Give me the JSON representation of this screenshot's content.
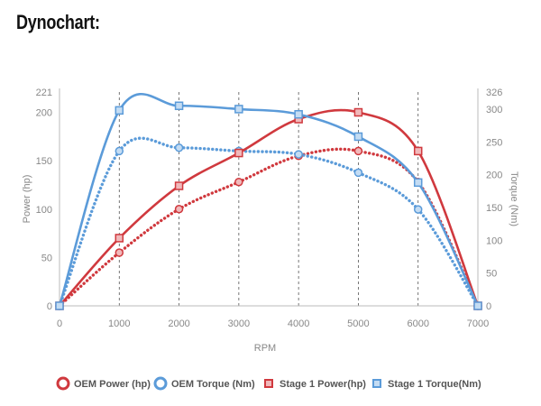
{
  "page": {
    "title": "Dynochart:"
  },
  "colors": {
    "red": "#d0393e",
    "blue": "#5b9bd9",
    "grid": "#555555",
    "axis": "#bbbbbb"
  },
  "chart_data": {
    "type": "line",
    "xlabel": "RPM",
    "ylabel_left": "Power (hp)",
    "ylabel_right": "Torque (Nm)",
    "x_ticks": [
      0,
      1000,
      2000,
      3000,
      4000,
      5000,
      6000,
      7000
    ],
    "left_ticks": [
      0,
      50,
      100,
      150,
      200,
      221
    ],
    "right_ticks": [
      0,
      50,
      100,
      150,
      200,
      250,
      300,
      326
    ],
    "xlim": [
      0,
      7000
    ],
    "ylim_left": [
      0,
      221
    ],
    "ylim_right": [
      0,
      326
    ],
    "grid": "vertical dashed at x ticks",
    "legend_position": "bottom",
    "x": [
      0,
      1000,
      2000,
      3000,
      4000,
      5000,
      6000,
      7000
    ],
    "series": [
      {
        "name": "OEM Power (hp)",
        "axis": "left",
        "style": "dotted",
        "marker": "circle",
        "color": "#d0393e",
        "values": [
          0,
          55,
          100,
          128,
          155,
          160,
          128,
          0
        ]
      },
      {
        "name": "OEM Torque (Nm)",
        "axis": "right",
        "style": "dotted",
        "marker": "circle",
        "color": "#5b9bd9",
        "values": [
          0,
          236,
          241,
          236,
          231,
          203,
          147,
          0
        ]
      },
      {
        "name": "Stage 1 Power(hp)",
        "axis": "left",
        "style": "solid",
        "marker": "square",
        "color": "#d0393e",
        "values": [
          0,
          70,
          124,
          158,
          193,
          200,
          160,
          0
        ]
      },
      {
        "name": "Stage 1 Torque(Nm)",
        "axis": "right",
        "style": "solid",
        "marker": "square",
        "color": "#5b9bd9",
        "values": [
          0,
          298,
          305,
          300,
          292,
          258,
          188,
          0
        ]
      }
    ]
  }
}
